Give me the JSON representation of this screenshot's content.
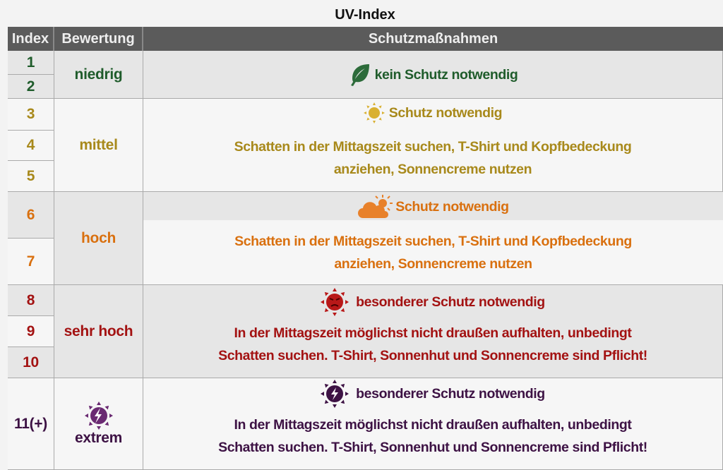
{
  "title": "UV-Index",
  "headers": {
    "index": "Index",
    "rating": "Bewertung",
    "measures": "Schutzmaßnahmen"
  },
  "colors": {
    "niedrig": "#1f5c2b",
    "mittel": "#a8891b",
    "hoch": "#d9700f",
    "sehr_hoch": "#a31212",
    "extrem": "#3d1244",
    "header_bg": "#5b5b5b"
  },
  "groups": [
    {
      "rating": "niedrig",
      "indices": [
        "1",
        "2"
      ],
      "icon": "leaf-icon",
      "headline": "kein Schutz notwendig",
      "detail": []
    },
    {
      "rating": "mittel",
      "indices": [
        "3",
        "4",
        "5"
      ],
      "icon": "sun-icon",
      "headline": "Schutz notwendig",
      "detail": [
        "Schatten in der Mittagszeit suchen, T-Shirt und Kopfbedeckung",
        "anziehen, Sonnencreme nutzen"
      ]
    },
    {
      "rating": "hoch",
      "indices": [
        "6",
        "7"
      ],
      "icon": "sun-cloud-icon",
      "headline": "Schutz notwendig",
      "detail": [
        "Schatten in der Mittagszeit suchen, T-Shirt und Kopfbedeckung",
        "anziehen, Sonnencreme nutzen"
      ]
    },
    {
      "rating": "sehr hoch",
      "indices": [
        "8",
        "9",
        "10"
      ],
      "icon": "angry-sun-icon",
      "headline": "besonderer Schutz notwendig",
      "detail": [
        "In der Mittagszeit möglichst nicht draußen aufhalten, unbedingt",
        "Schatten suchen. T-Shirt, Sonnenhut und Sonnencreme sind Pflicht!"
      ]
    },
    {
      "rating": "extrem",
      "indices": [
        "11(+)"
      ],
      "icon": "lightning-sun-icon",
      "headline": "besonderer Schutz notwendig",
      "detail": [
        "In der Mittagszeit möglichst nicht draußen aufhalten, unbedingt",
        "Schatten suchen. T-Shirt, Sonnenhut und Sonnencreme sind Pflicht!"
      ]
    }
  ]
}
